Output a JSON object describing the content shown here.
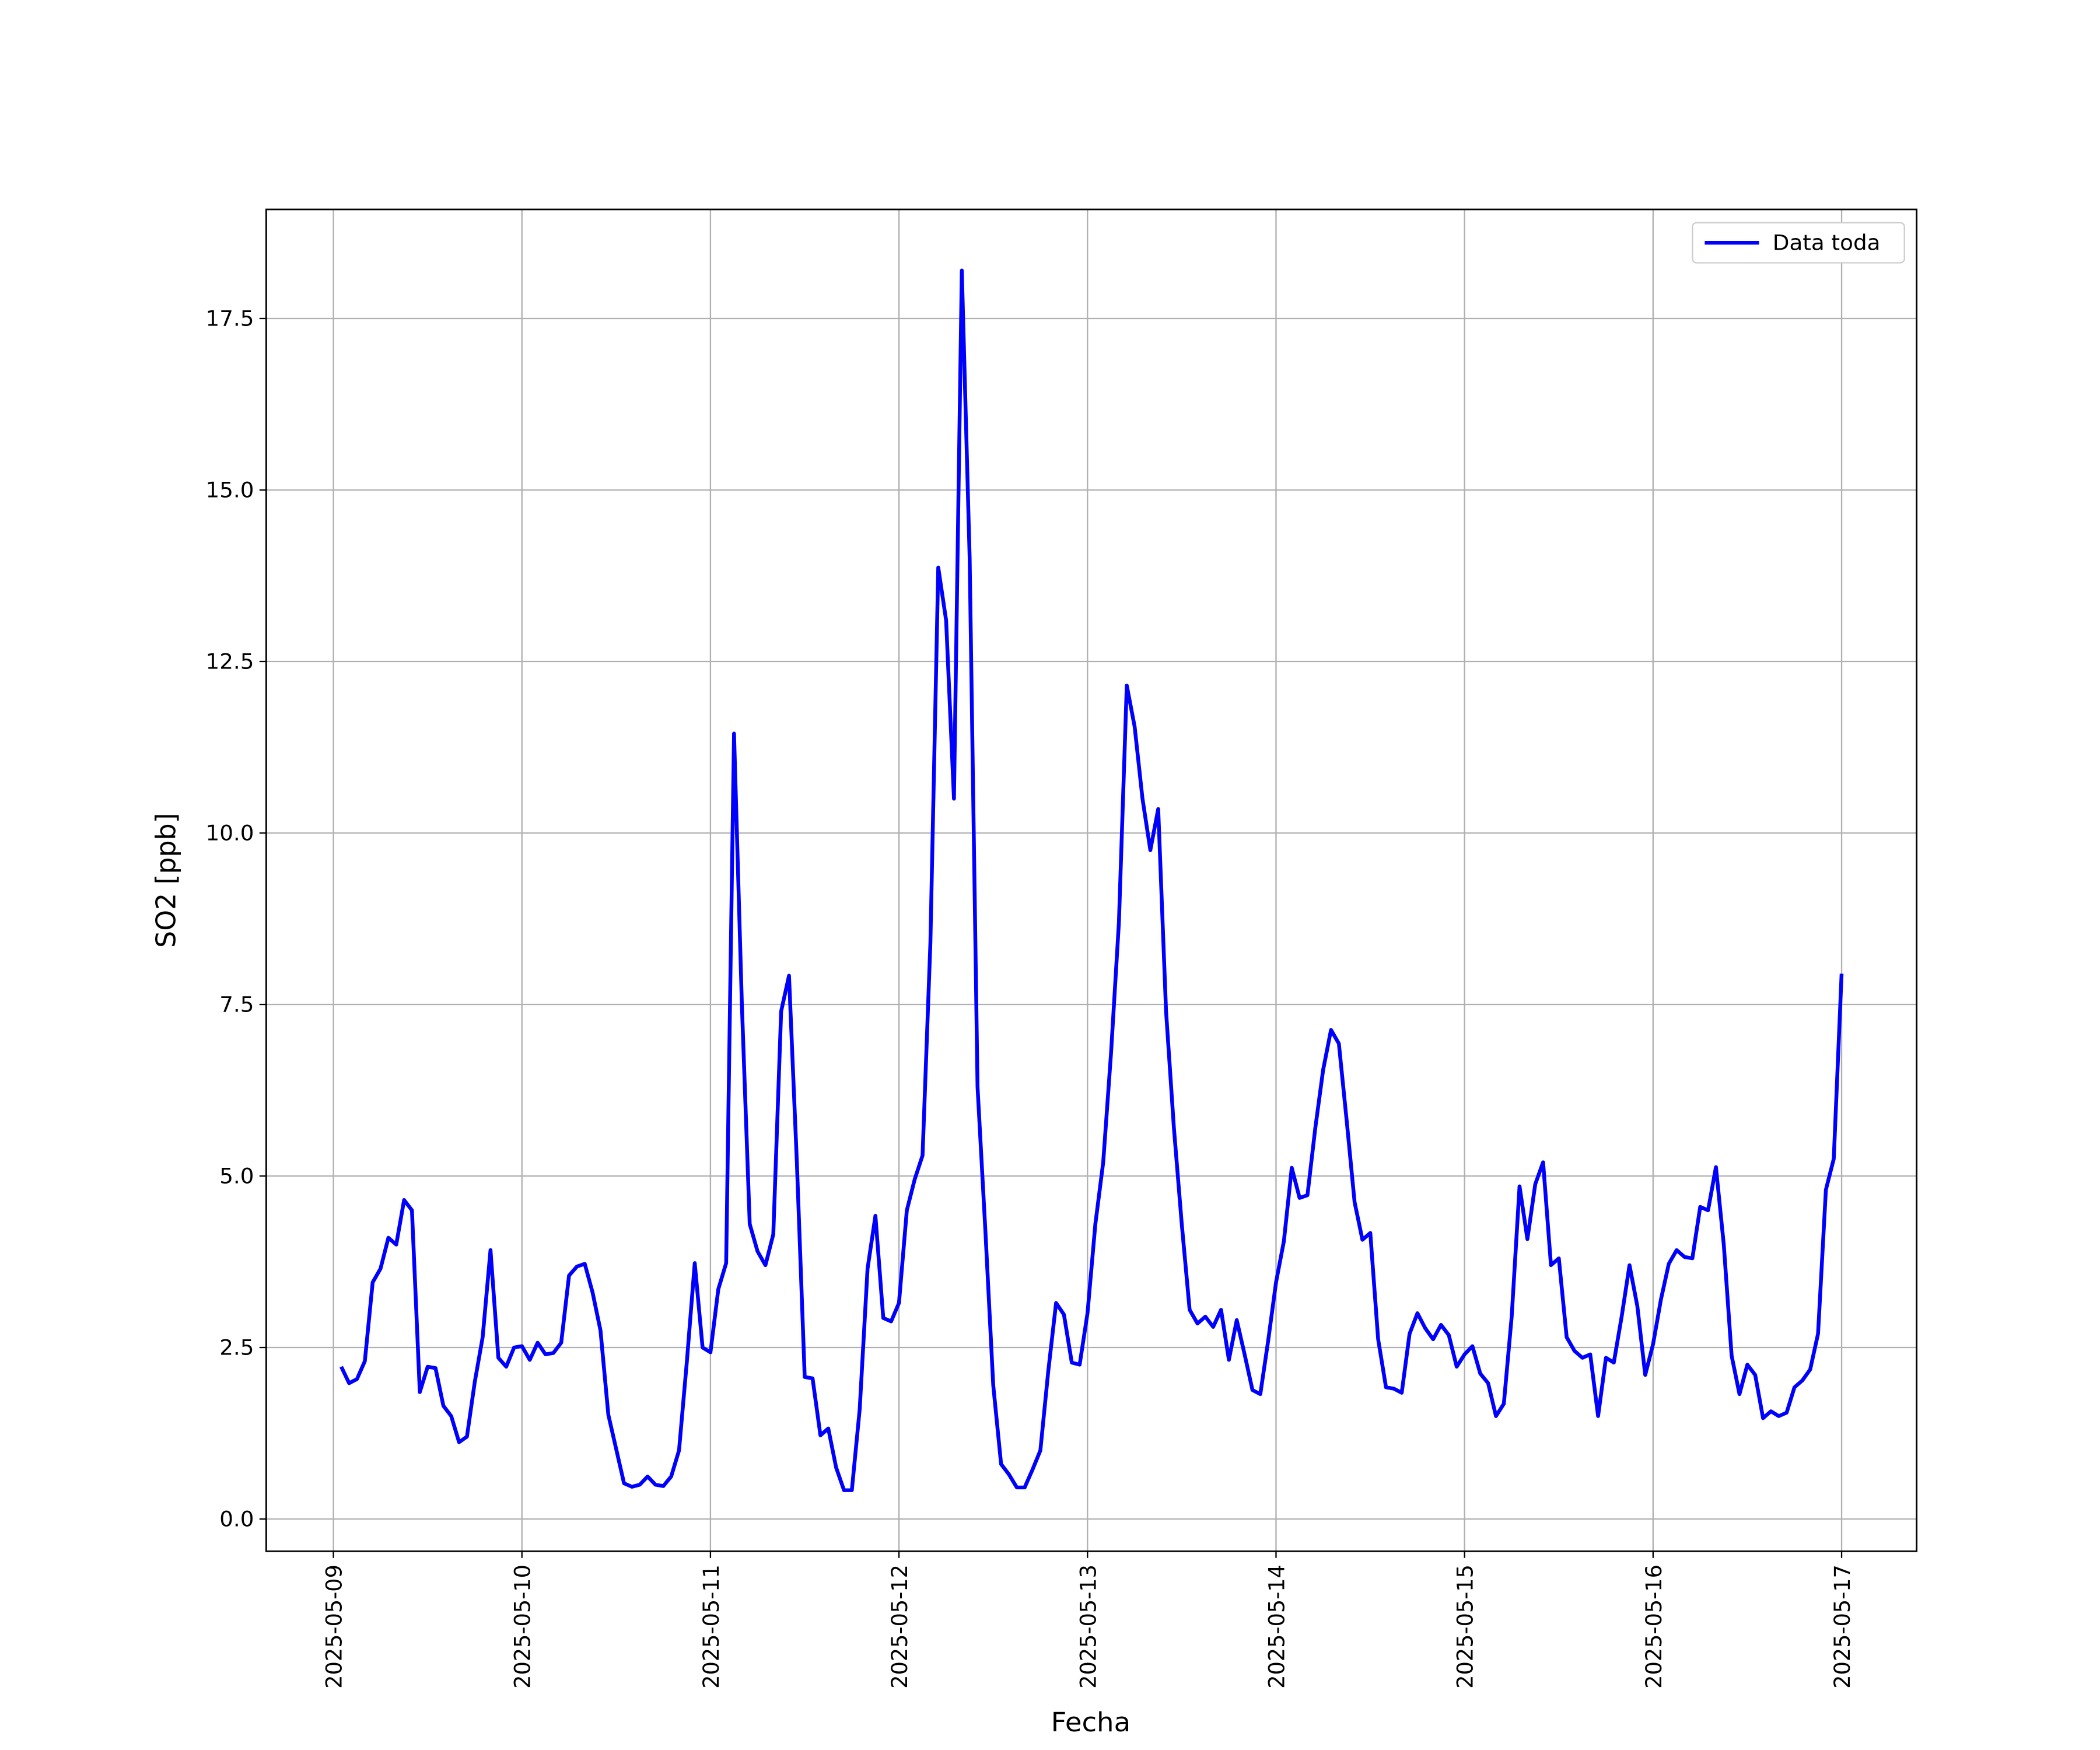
{
  "chart_data": {
    "type": "line",
    "xlabel": "Fecha",
    "ylabel": "SO2 [ppb]",
    "x": [
      "2025-05-09 01:00",
      "2025-05-09 02:00",
      "2025-05-09 03:00",
      "2025-05-09 04:00",
      "2025-05-09 05:00",
      "2025-05-09 06:00",
      "2025-05-09 07:00",
      "2025-05-09 08:00",
      "2025-05-09 09:00",
      "2025-05-09 10:00",
      "2025-05-09 11:00",
      "2025-05-09 12:00",
      "2025-05-09 13:00",
      "2025-05-09 14:00",
      "2025-05-09 15:00",
      "2025-05-09 16:00",
      "2025-05-09 17:00",
      "2025-05-09 18:00",
      "2025-05-09 19:00",
      "2025-05-09 20:00",
      "2025-05-09 21:00",
      "2025-05-09 22:00",
      "2025-05-09 23:00",
      "2025-05-10 00:00",
      "2025-05-10 01:00",
      "2025-05-10 02:00",
      "2025-05-10 03:00",
      "2025-05-10 04:00",
      "2025-05-10 05:00",
      "2025-05-10 06:00",
      "2025-05-10 07:00",
      "2025-05-10 08:00",
      "2025-05-10 09:00",
      "2025-05-10 10:00",
      "2025-05-10 11:00",
      "2025-05-10 12:00",
      "2025-05-10 13:00",
      "2025-05-10 14:00",
      "2025-05-10 15:00",
      "2025-05-10 16:00",
      "2025-05-10 17:00",
      "2025-05-10 18:00",
      "2025-05-10 19:00",
      "2025-05-10 20:00",
      "2025-05-10 21:00",
      "2025-05-10 22:00",
      "2025-05-10 23:00",
      "2025-05-11 00:00",
      "2025-05-11 01:00",
      "2025-05-11 02:00",
      "2025-05-11 03:00",
      "2025-05-11 04:00",
      "2025-05-11 05:00",
      "2025-05-11 06:00",
      "2025-05-11 07:00",
      "2025-05-11 08:00",
      "2025-05-11 09:00",
      "2025-05-11 10:00",
      "2025-05-11 11:00",
      "2025-05-11 12:00",
      "2025-05-11 13:00",
      "2025-05-11 14:00",
      "2025-05-11 15:00",
      "2025-05-11 16:00",
      "2025-05-11 17:00",
      "2025-05-11 18:00",
      "2025-05-11 19:00",
      "2025-05-11 20:00",
      "2025-05-11 21:00",
      "2025-05-11 22:00",
      "2025-05-11 23:00",
      "2025-05-12 00:00",
      "2025-05-12 01:00",
      "2025-05-12 02:00",
      "2025-05-12 03:00",
      "2025-05-12 04:00",
      "2025-05-12 05:00",
      "2025-05-12 06:00",
      "2025-05-12 07:00",
      "2025-05-12 08:00",
      "2025-05-12 09:00",
      "2025-05-12 10:00",
      "2025-05-12 11:00",
      "2025-05-12 12:00",
      "2025-05-12 13:00",
      "2025-05-12 14:00",
      "2025-05-12 15:00",
      "2025-05-12 16:00",
      "2025-05-12 17:00",
      "2025-05-12 18:00",
      "2025-05-12 19:00",
      "2025-05-12 20:00",
      "2025-05-12 21:00",
      "2025-05-12 22:00",
      "2025-05-12 23:00",
      "2025-05-13 00:00",
      "2025-05-13 01:00",
      "2025-05-13 02:00",
      "2025-05-13 03:00",
      "2025-05-13 04:00",
      "2025-05-13 05:00",
      "2025-05-13 06:00",
      "2025-05-13 07:00",
      "2025-05-13 08:00",
      "2025-05-13 09:00",
      "2025-05-13 10:00",
      "2025-05-13 11:00",
      "2025-05-13 12:00",
      "2025-05-13 13:00",
      "2025-05-13 14:00",
      "2025-05-13 15:00",
      "2025-05-13 16:00",
      "2025-05-13 17:00",
      "2025-05-13 18:00",
      "2025-05-13 19:00",
      "2025-05-13 20:00",
      "2025-05-13 21:00",
      "2025-05-13 22:00",
      "2025-05-13 23:00",
      "2025-05-14 00:00",
      "2025-05-14 01:00",
      "2025-05-14 02:00",
      "2025-05-14 03:00",
      "2025-05-14 04:00",
      "2025-05-14 05:00",
      "2025-05-14 06:00",
      "2025-05-14 07:00",
      "2025-05-14 08:00",
      "2025-05-14 09:00",
      "2025-05-14 10:00",
      "2025-05-14 11:00",
      "2025-05-14 12:00",
      "2025-05-14 13:00",
      "2025-05-14 14:00",
      "2025-05-14 15:00",
      "2025-05-14 16:00",
      "2025-05-14 17:00",
      "2025-05-14 18:00",
      "2025-05-14 19:00",
      "2025-05-14 20:00",
      "2025-05-14 21:00",
      "2025-05-14 22:00",
      "2025-05-14 23:00",
      "2025-05-15 00:00",
      "2025-05-15 01:00",
      "2025-05-15 02:00",
      "2025-05-15 03:00",
      "2025-05-15 04:00",
      "2025-05-15 05:00",
      "2025-05-15 06:00",
      "2025-05-15 07:00",
      "2025-05-15 08:00",
      "2025-05-15 09:00",
      "2025-05-15 10:00",
      "2025-05-15 11:00",
      "2025-05-15 12:00",
      "2025-05-15 13:00",
      "2025-05-15 14:00",
      "2025-05-15 15:00",
      "2025-05-15 16:00",
      "2025-05-15 17:00",
      "2025-05-15 18:00",
      "2025-05-15 19:00",
      "2025-05-15 20:00",
      "2025-05-15 21:00",
      "2025-05-15 22:00",
      "2025-05-15 23:00",
      "2025-05-16 00:00",
      "2025-05-16 01:00",
      "2025-05-16 02:00",
      "2025-05-16 03:00",
      "2025-05-16 04:00",
      "2025-05-16 05:00",
      "2025-05-16 06:00",
      "2025-05-16 07:00",
      "2025-05-16 08:00",
      "2025-05-16 09:00",
      "2025-05-16 10:00",
      "2025-05-16 11:00",
      "2025-05-16 12:00",
      "2025-05-16 13:00",
      "2025-05-16 14:00",
      "2025-05-16 15:00",
      "2025-05-16 16:00",
      "2025-05-16 17:00",
      "2025-05-16 18:00",
      "2025-05-16 19:00",
      "2025-05-16 20:00",
      "2025-05-16 21:00",
      "2025-05-16 22:00",
      "2025-05-16 23:00",
      "2025-05-17 00:00"
    ],
    "series": [
      {
        "name": "Data toda",
        "color": "#0000ff",
        "values": [
          2.22,
          1.98,
          2.04,
          2.3,
          3.45,
          3.65,
          4.1,
          4.0,
          4.65,
          4.5,
          1.85,
          2.22,
          2.2,
          1.65,
          1.5,
          1.12,
          1.2,
          2.0,
          2.65,
          3.92,
          2.35,
          2.22,
          2.5,
          2.52,
          2.32,
          2.57,
          2.4,
          2.42,
          2.57,
          3.55,
          3.68,
          3.72,
          3.3,
          2.75,
          1.52,
          1.02,
          0.52,
          0.47,
          0.5,
          0.62,
          0.5,
          0.48,
          0.62,
          1.0,
          2.3,
          3.73,
          2.5,
          2.43,
          3.35,
          3.73,
          11.45,
          7.5,
          4.3,
          3.9,
          3.7,
          4.15,
          7.4,
          7.92,
          5.2,
          2.07,
          2.05,
          1.22,
          1.32,
          0.75,
          0.42,
          0.42,
          1.6,
          3.65,
          4.42,
          2.93,
          2.88,
          3.15,
          4.5,
          4.95,
          5.3,
          8.4,
          13.87,
          13.1,
          10.5,
          18.2,
          14.0,
          6.3,
          4.2,
          1.95,
          0.8,
          0.65,
          0.46,
          0.46,
          0.72,
          1.0,
          2.15,
          3.15,
          2.98,
          2.28,
          2.25,
          3.0,
          4.3,
          5.2,
          6.8,
          8.7,
          12.15,
          11.55,
          10.5,
          9.75,
          10.35,
          7.4,
          5.7,
          4.3,
          3.05,
          2.85,
          2.95,
          2.8,
          3.05,
          2.32,
          2.9,
          2.4,
          1.88,
          1.82,
          2.6,
          3.45,
          4.05,
          5.12,
          4.68,
          4.72,
          5.7,
          6.55,
          7.13,
          6.93,
          5.8,
          4.62,
          4.07,
          4.17,
          2.62,
          1.92,
          1.9,
          1.84,
          2.7,
          3.0,
          2.78,
          2.62,
          2.83,
          2.68,
          2.22,
          2.4,
          2.52,
          2.12,
          1.98,
          1.5,
          1.68,
          2.95,
          4.85,
          4.08,
          4.88,
          5.2,
          3.7,
          3.8,
          2.65,
          2.45,
          2.35,
          2.4,
          1.5,
          2.35,
          2.28,
          2.95,
          3.7,
          3.1,
          2.1,
          2.55,
          3.2,
          3.72,
          3.92,
          3.82,
          3.8,
          4.55,
          4.5,
          5.13,
          4.0,
          2.38,
          1.82,
          2.25,
          2.1,
          1.47,
          1.57,
          1.5,
          1.55,
          1.92,
          2.02,
          2.18,
          2.7,
          4.8,
          5.25,
          7.95
        ]
      }
    ],
    "xlim": [
      "2025-05-08 15:27",
      "2025-05-17 09:33"
    ],
    "xticks": [
      "2025-05-09",
      "2025-05-10",
      "2025-05-11",
      "2025-05-12",
      "2025-05-13",
      "2025-05-14",
      "2025-05-15",
      "2025-05-16",
      "2025-05-17"
    ],
    "ylim": [
      -0.47,
      19.09
    ],
    "yticks": [
      {
        "value": 0,
        "label": "0.0"
      },
      {
        "value": 2.5,
        "label": "2.5"
      },
      {
        "value": 5,
        "label": "5.0"
      },
      {
        "value": 7.5,
        "label": "7.5"
      },
      {
        "value": 10,
        "label": "10.0"
      },
      {
        "value": 12.5,
        "label": "12.5"
      },
      {
        "value": 15,
        "label": "15.0"
      },
      {
        "value": 17.5,
        "label": "17.5"
      }
    ],
    "grid": true,
    "legend": "upper right"
  }
}
